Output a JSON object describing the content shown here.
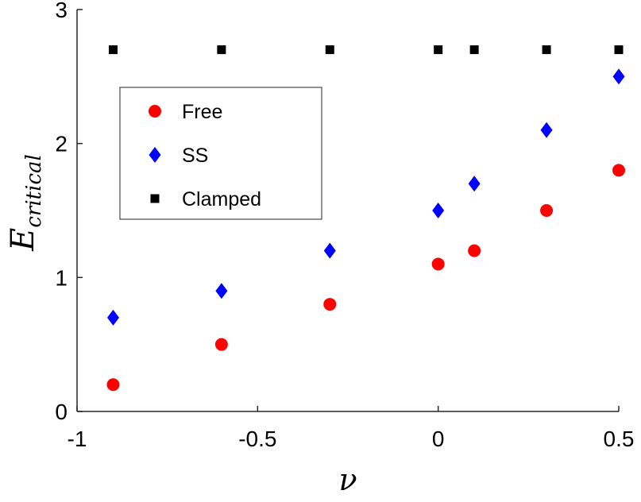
{
  "chart_data": {
    "type": "scatter",
    "x_label": "ν",
    "y_label": "E",
    "y_label_subscript": "critical",
    "xlim": [
      -1,
      0.5
    ],
    "ylim": [
      0,
      3
    ],
    "x_ticks": [
      -1,
      -0.5,
      0,
      0.5
    ],
    "x_tick_labels": [
      "-1",
      "-0.5",
      "0",
      "0.5"
    ],
    "y_ticks": [
      0,
      1,
      2,
      3
    ],
    "y_tick_labels": [
      "0",
      "1",
      "2",
      "3"
    ],
    "grid": false,
    "legend_position": "upper-left",
    "series": [
      {
        "name": "Free",
        "marker": "circle",
        "color": "#ff0000",
        "points": [
          [
            -0.9,
            0.2
          ],
          [
            -0.6,
            0.5
          ],
          [
            -0.3,
            0.8
          ],
          [
            0.0,
            1.1
          ],
          [
            0.1,
            1.2
          ],
          [
            0.3,
            1.5
          ],
          [
            0.5,
            1.8
          ]
        ]
      },
      {
        "name": "SS",
        "marker": "diamond",
        "color": "#0000ff",
        "points": [
          [
            -0.9,
            0.7
          ],
          [
            -0.6,
            0.9
          ],
          [
            -0.3,
            1.2
          ],
          [
            0.0,
            1.5
          ],
          [
            0.1,
            1.7
          ],
          [
            0.3,
            2.1
          ],
          [
            0.5,
            2.5
          ]
        ]
      },
      {
        "name": "Clamped",
        "marker": "square",
        "color": "#000000",
        "points": [
          [
            -0.9,
            2.7
          ],
          [
            -0.6,
            2.7
          ],
          [
            -0.3,
            2.7
          ],
          [
            0.0,
            2.7
          ],
          [
            0.1,
            2.7
          ],
          [
            0.3,
            2.7
          ],
          [
            0.5,
            2.7
          ]
        ]
      }
    ]
  }
}
